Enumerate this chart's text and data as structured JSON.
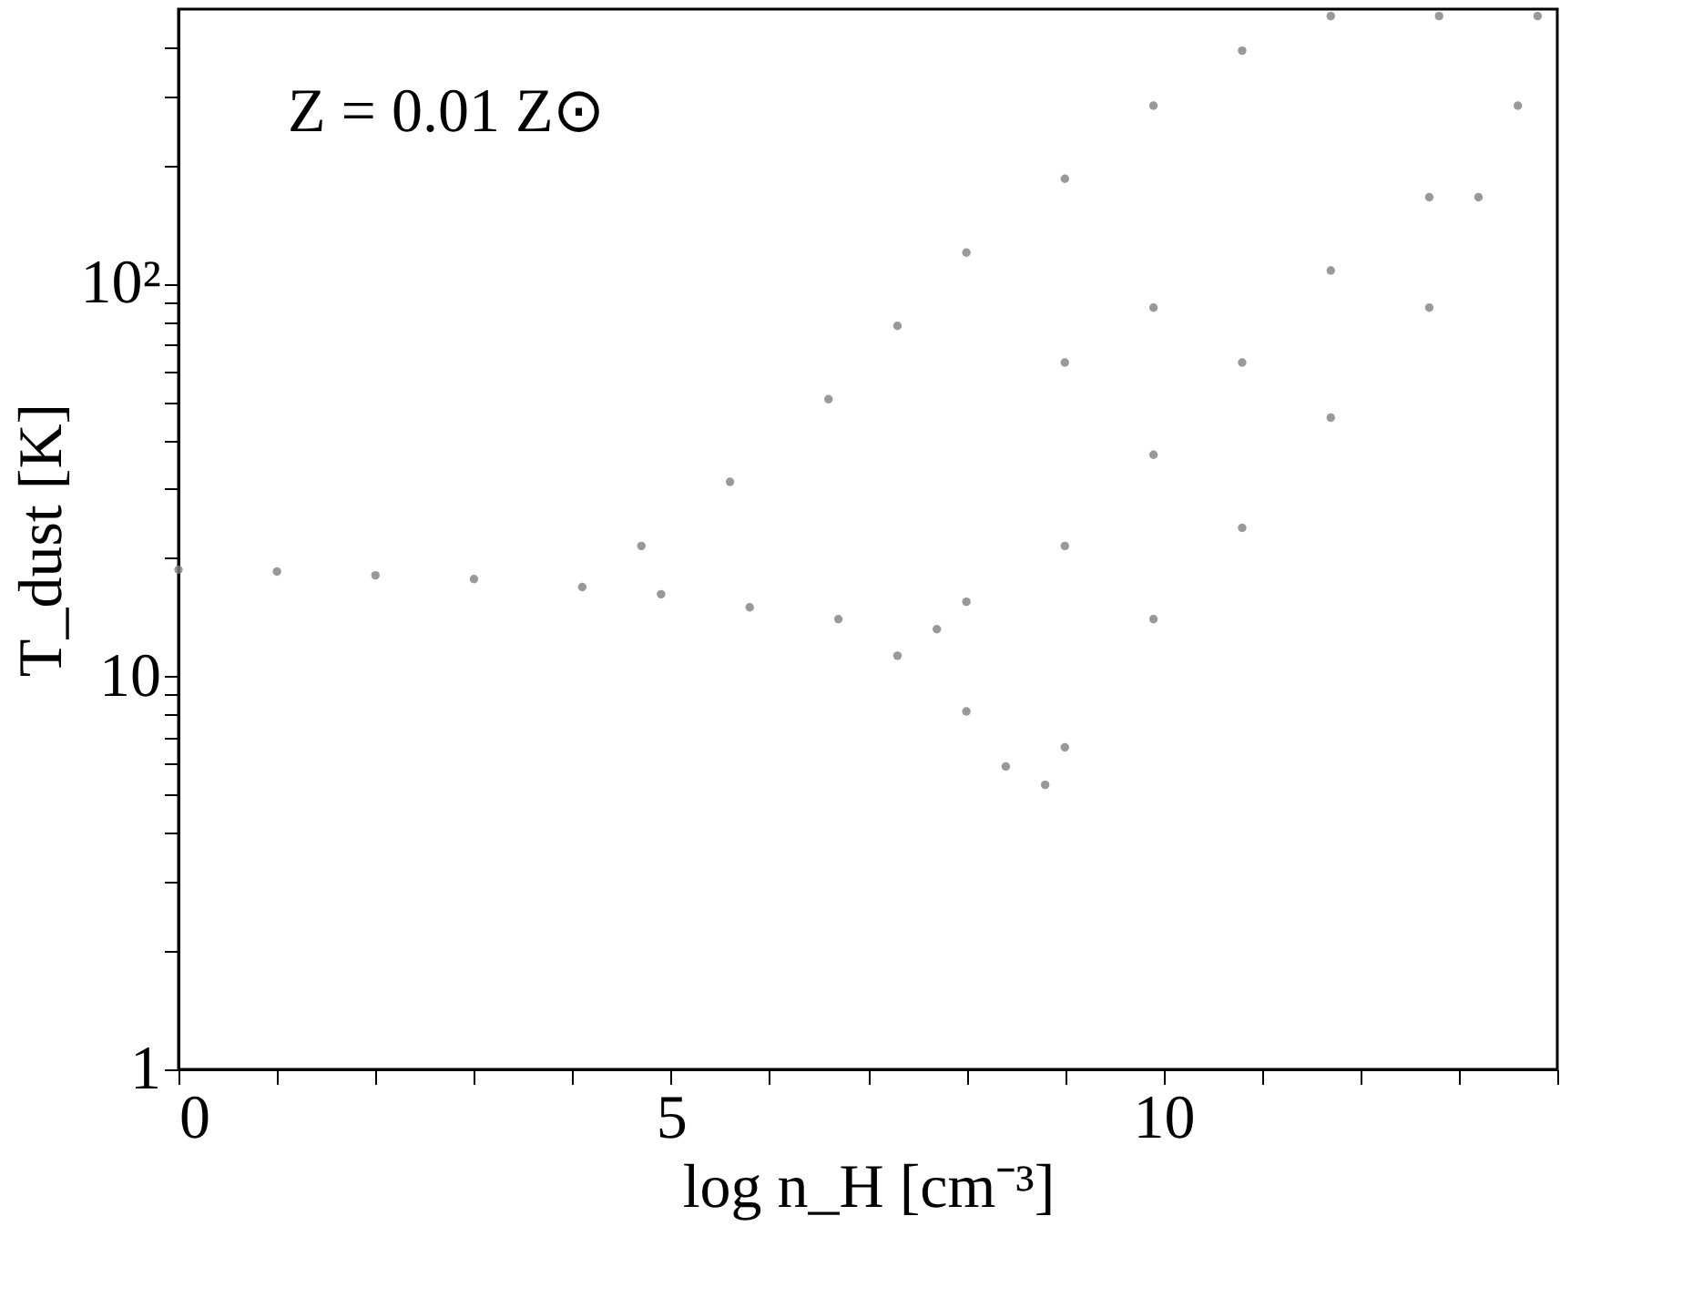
{
  "chart_data": {
    "type": "scatter",
    "xlabel": "log n_H [cm⁻³]",
    "ylabel": "T_dust [K]",
    "annotations": [
      "Z = 0.01 Z⊙"
    ],
    "xlim": [
      0,
      14
    ],
    "ylim": [
      1,
      500
    ],
    "log": true,
    "grid": false,
    "marker": "circle",
    "xticks": [
      0,
      {
        "value": 1,
        "label": null
      },
      {
        "value": 2,
        "label": null
      },
      {
        "value": 3,
        "label": null
      },
      {
        "value": 4,
        "label": null
      },
      5,
      {
        "value": 6,
        "label": null
      },
      {
        "value": 7,
        "label": null
      },
      {
        "value": 8,
        "label": null
      },
      {
        "value": 9,
        "label": null
      },
      10,
      {
        "value": 11,
        "label": null
      },
      {
        "value": 12,
        "label": null
      },
      {
        "value": 13,
        "label": null
      },
      {
        "value": 14,
        "label": null
      }
    ],
    "yticks": [
      1,
      {
        "value": 2,
        "label": null
      },
      {
        "value": 3,
        "label": null
      },
      {
        "value": 4,
        "label": null
      },
      {
        "value": 5,
        "label": null
      },
      {
        "value": 6,
        "label": null
      },
      {
        "value": 7,
        "label": null
      },
      {
        "value": 8,
        "label": null
      },
      {
        "value": 9,
        "label": null
      },
      10,
      {
        "value": 20,
        "label": null
      },
      {
        "value": 30,
        "label": null
      },
      {
        "value": 40,
        "label": null
      },
      {
        "value": 50,
        "label": null
      },
      {
        "value": 60,
        "label": null
      },
      {
        "value": 70,
        "label": null
      },
      {
        "value": 80,
        "label": null
      },
      {
        "value": 90,
        "label": null
      },
      {
        "value": 100,
        "label": "10²"
      },
      {
        "value": 200,
        "label": null
      },
      {
        "value": 300,
        "label": null
      },
      {
        "value": 400,
        "label": null
      }
    ],
    "series": [
      {
        "color": "#808080",
        "x": [
          0,
          1.0,
          2.0,
          3.0,
          4.1,
          4.9,
          5.8,
          6.7,
          7.7,
          4.7,
          5.6,
          6.6,
          7.3,
          8.0,
          9.0,
          9.9,
          10.8,
          11.7,
          12.8,
          13.8,
          7.3,
          8.0,
          8.4,
          8.8,
          9.0,
          9.9,
          10.8,
          11.7,
          12.7,
          13.2,
          13.6,
          8.0,
          9.0,
          9.9,
          10.8,
          11.7,
          12.7,
          9.0,
          9.9
        ],
        "values": [
          18.7,
          18.5,
          18.1,
          17.7,
          16.9,
          16.2,
          15.0,
          14.0,
          13.2,
          21.5,
          31.3,
          50.8,
          78.1,
          120,
          185,
          284,
          392,
          480,
          480,
          480,
          11.3,
          8.15,
          5.9,
          5.3,
          6.6,
          14.0,
          23.9,
          45.6,
          86.9,
          166,
          284,
          15.5,
          21.5,
          36.7,
          63.0,
          108,
          166,
          63.0,
          86.9
        ]
      }
    ]
  }
}
